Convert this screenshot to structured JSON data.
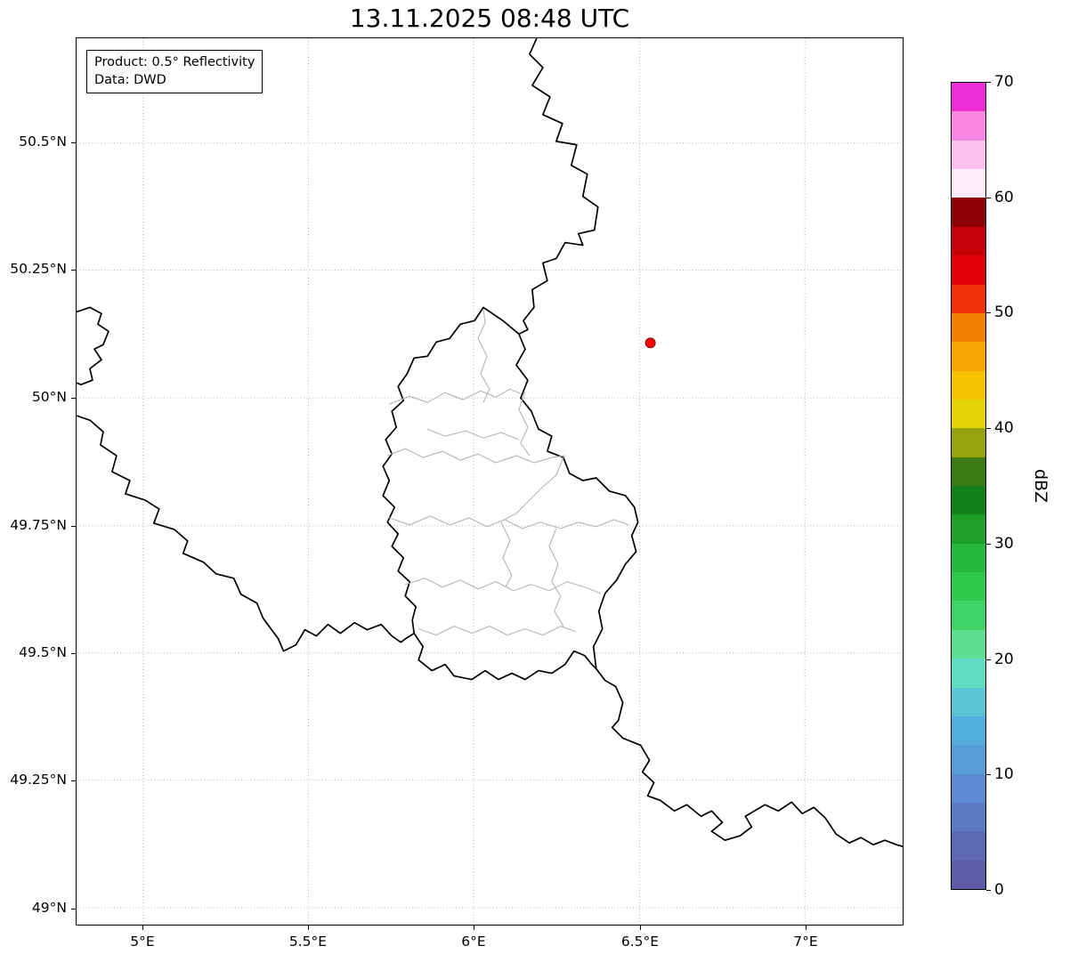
{
  "title": "13.11.2025 08:48 UTC",
  "info_box": {
    "line1": "Product: 0.5° Reflectivity",
    "line2": "Data: DWD"
  },
  "map": {
    "y_tick_labels": [
      "50.5°N",
      "50.25°N",
      "50°N",
      "49.75°N",
      "49.5°N",
      "49.25°N",
      "49°N"
    ],
    "x_tick_labels": [
      "5°E",
      "5.5°E",
      "6°E",
      "6.5°E",
      "7°E"
    ],
    "marker_color": "#ff0000",
    "country_border_color": "#000000",
    "admin_border_color": "#b4b4b4"
  },
  "colorbar": {
    "label": "dBZ",
    "tick_labels": [
      "0",
      "10",
      "20",
      "30",
      "40",
      "50",
      "60",
      "70"
    ],
    "range": [
      0,
      70
    ],
    "colors_bottom_to_top": [
      "#5c5da6",
      "#5d69b3",
      "#5d78c4",
      "#5a8ad2",
      "#569cda",
      "#53aedd",
      "#58c5d6",
      "#60dcc5",
      "#5cdd92",
      "#40d566",
      "#2fc94b",
      "#26b83a",
      "#1da02a",
      "#13811b",
      "#3c7a13",
      "#95a40c",
      "#e5d405",
      "#f6c102",
      "#f7a301",
      "#f68000",
      "#f03008",
      "#e00006",
      "#c50007",
      "#8f0007",
      "#fdeefa",
      "#fbc2ef",
      "#f787e2",
      "#ee2ed8"
    ]
  }
}
